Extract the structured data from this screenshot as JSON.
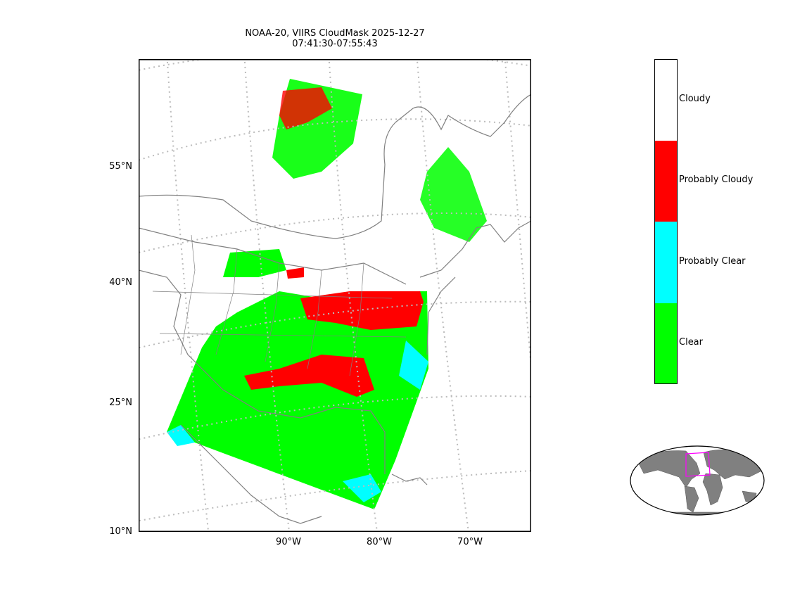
{
  "title": {
    "line1": "NOAA-20, VIIRS CloudMask 2025-12-27",
    "line2": "07:41:30-07:55:43"
  },
  "map": {
    "lat_labels": [
      "55°N",
      "40°N",
      "25°N",
      "10°N"
    ],
    "lon_labels": [
      "90°W",
      "80°W",
      "70°W"
    ]
  },
  "colorbar": {
    "categories": [
      {
        "label": "Cloudy",
        "color": "#ffffff"
      },
      {
        "label": "Probably Cloudy",
        "color": "#ff0000"
      },
      {
        "label": "Probably Clear",
        "color": "#00ffff"
      },
      {
        "label": "Clear",
        "color": "#00ff00"
      }
    ]
  },
  "colors": {
    "coastline": "#808080",
    "graticule": "#bbbbbb",
    "inset_land": "#808080",
    "inset_box": "#ff00ff"
  }
}
